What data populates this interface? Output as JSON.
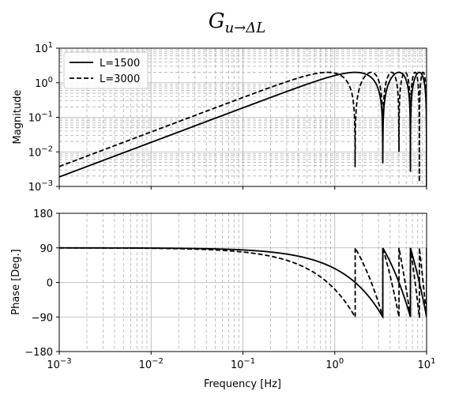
{
  "chart_data": [
    {
      "type": "line",
      "title": {
        "main": "G",
        "sub": "u→ΔL"
      },
      "xlabel": "",
      "ylabel": "Magnitude",
      "xscale": "log",
      "yscale": "log",
      "xlim": [
        0.001,
        10
      ],
      "ylim": [
        0.001,
        10
      ],
      "x_ticks": [
        {
          "base": "10",
          "exp": "−3"
        },
        {
          "base": "10",
          "exp": "−2"
        },
        {
          "base": "10",
          "exp": "−1"
        },
        {
          "base": "10",
          "exp": "0"
        },
        {
          "base": "10",
          "exp": "1"
        }
      ],
      "y_ticks": [
        {
          "base": "10",
          "exp": "−3"
        },
        {
          "base": "10",
          "exp": "−2"
        },
        {
          "base": "10",
          "exp": "−1"
        },
        {
          "base": "10",
          "exp": "0"
        },
        {
          "base": "10",
          "exp": "1"
        }
      ],
      "grid": true,
      "legend": {
        "position": "top-left",
        "entries": [
          "L=1500",
          "L=3000"
        ]
      },
      "series": [
        {
          "name": "L=1500",
          "style": "solid",
          "color": "#000000",
          "L": 1500,
          "magnitude_model": "2|sin(pi f L / c)|, c = 5000 m/s",
          "first_notch_hz": 3.33,
          "peak": 2.0
        },
        {
          "name": "L=3000",
          "style": "dashed",
          "color": "#000000",
          "L": 3000,
          "magnitude_model": "2|sin(pi f L / c)|, c = 5000 m/s",
          "first_notch_hz": 1.67,
          "peak": 2.0
        }
      ]
    },
    {
      "type": "line",
      "xlabel": "Frequency [Hz]",
      "ylabel": "Phase [Deg.]",
      "xscale": "log",
      "xlim": [
        0.001,
        10
      ],
      "ylim": [
        -180,
        180
      ],
      "x_ticks": [
        {
          "base": "10",
          "exp": "−3"
        },
        {
          "base": "10",
          "exp": "−2"
        },
        {
          "base": "10",
          "exp": "−1"
        },
        {
          "base": "10",
          "exp": "0"
        },
        {
          "base": "10",
          "exp": "1"
        }
      ],
      "y_ticks": [
        "−180",
        "−90",
        "0",
        "90",
        "180"
      ],
      "y_tick_values": [
        -180,
        -90,
        0,
        90,
        180
      ],
      "grid": true,
      "series": [
        {
          "name": "L=1500",
          "style": "solid",
          "color": "#000000",
          "phase_model": "90 - 180 f L / c, wrapped to (-90, 90]"
        },
        {
          "name": "L=3000",
          "style": "dashed",
          "color": "#000000",
          "phase_model": "90 - 180 f L / c, wrapped to (-90, 90]"
        }
      ]
    }
  ]
}
